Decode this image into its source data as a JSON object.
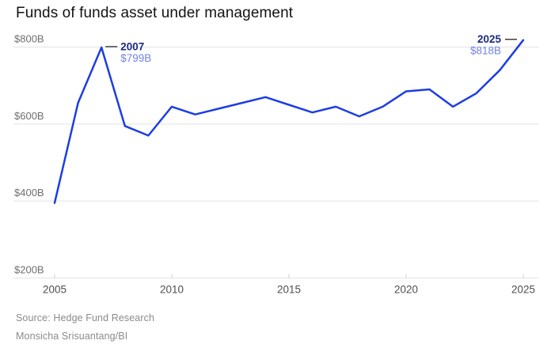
{
  "header": {
    "title": "Funds of funds asset under management"
  },
  "footer": {
    "source": "Source: Hedge Fund Research",
    "credit": "Monsicha Srisuantang/BI"
  },
  "chart_data": {
    "type": "line",
    "title": "Funds of funds asset under management",
    "x": [
      2005,
      2006,
      2007,
      2008,
      2009,
      2010,
      2011,
      2012,
      2013,
      2014,
      2015,
      2016,
      2017,
      2018,
      2019,
      2020,
      2021,
      2022,
      2023,
      2024,
      2025
    ],
    "series": [
      {
        "name": "Funds of funds assets under management ($B)",
        "values": [
          395,
          655,
          799,
          595,
          570,
          645,
          625,
          640,
          655,
          670,
          650,
          630,
          645,
          620,
          645,
          685,
          690,
          645,
          680,
          740,
          818
        ]
      }
    ],
    "xlabel": "",
    "ylabel": "",
    "ylim": [
      200,
      800
    ],
    "grid": "horizontal",
    "legend": "none",
    "y_ticks": [
      {
        "value": 800,
        "label": "$800B"
      },
      {
        "value": 600,
        "label": "$600B"
      },
      {
        "value": 400,
        "label": "$400B"
      },
      {
        "value": 200,
        "label": "$200B"
      }
    ],
    "x_ticks": [
      {
        "value": 2005,
        "label": "2005"
      },
      {
        "value": 2010,
        "label": "2010"
      },
      {
        "value": 2015,
        "label": "2015"
      },
      {
        "value": 2020,
        "label": "2020"
      },
      {
        "value": 2025,
        "label": "2025"
      }
    ],
    "annotations": [
      {
        "x": 2007,
        "y": 799,
        "title": "2007",
        "text": "$799B",
        "label_side": "right"
      },
      {
        "x": 2025,
        "y": 818,
        "title": "2025",
        "text": "$818B",
        "label_side": "left"
      }
    ],
    "colors": {
      "line": "#1d3de2",
      "annotation_year": "#1a2b80",
      "annotation_value": "#7281e8",
      "grid": "#e3e3e3",
      "tick": "#d0d0d0",
      "y_labels": "#6f6f6f",
      "x_labels": "#4f4f4f",
      "dash": "#333333",
      "title": "#131313",
      "footnote": "#8b8b8b"
    }
  }
}
